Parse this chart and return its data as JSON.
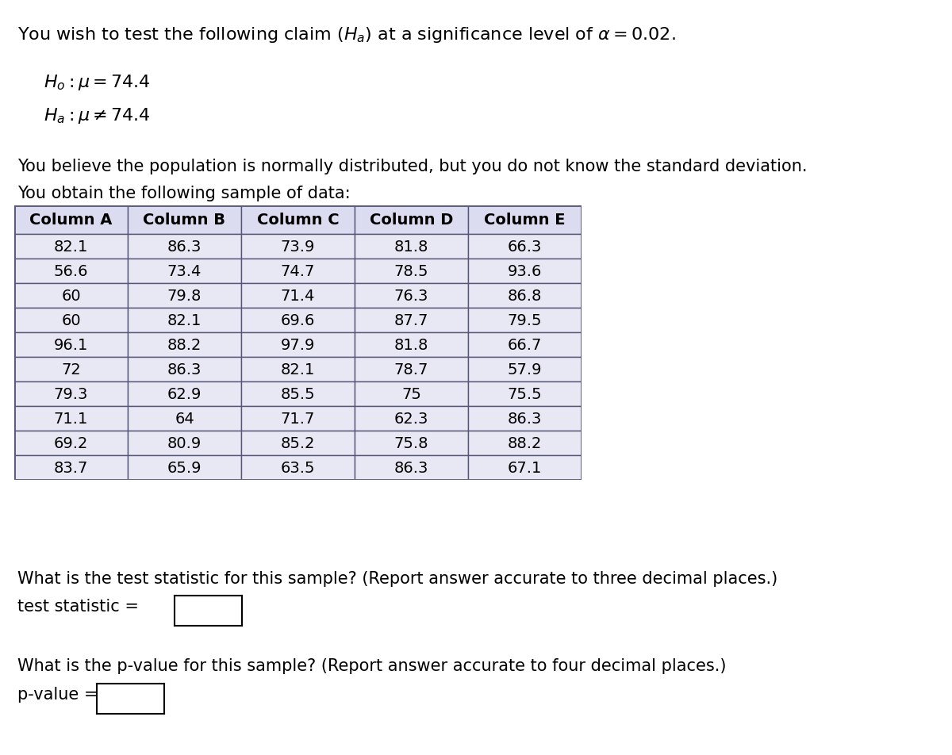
{
  "title_line": "You wish to test the following claim ($H_a$) at a significance level of $\\alpha = 0.02$.",
  "h0_text": "$H_o:\\mu = 74.4$",
  "ha_text": "$H_a:\\mu \\neq 74.4$",
  "body_text1": "You believe the population is normally distributed, but you do not know the standard deviation.",
  "body_text2": "You obtain the following sample of data:",
  "columns": [
    "Column A",
    "Column B",
    "Column C",
    "Column D",
    "Column E"
  ],
  "table_data": [
    [
      82.1,
      86.3,
      73.9,
      81.8,
      66.3
    ],
    [
      56.6,
      73.4,
      74.7,
      78.5,
      93.6
    ],
    [
      60,
      79.8,
      71.4,
      76.3,
      86.8
    ],
    [
      60,
      82.1,
      69.6,
      87.7,
      79.5
    ],
    [
      96.1,
      88.2,
      97.9,
      81.8,
      66.7
    ],
    [
      72,
      86.3,
      82.1,
      78.7,
      57.9
    ],
    [
      79.3,
      62.9,
      85.5,
      75,
      75.5
    ],
    [
      71.1,
      64,
      71.7,
      62.3,
      86.3
    ],
    [
      69.2,
      80.9,
      85.2,
      75.8,
      88.2
    ],
    [
      83.7,
      65.9,
      63.5,
      86.3,
      67.1
    ]
  ],
  "question1": "What is the test statistic for this sample? (Report answer accurate to three decimal places.)",
  "label1": "test statistic =",
  "question2": "What is the p-value for this sample? (Report answer accurate to four decimal places.)",
  "label2": "p-value =",
  "header_bg": "#dcdcf0",
  "row_bg": "#e8e8f5",
  "table_border": "#555577",
  "font_size_title": 16,
  "font_size_hyp": 16,
  "font_size_body": 15,
  "font_size_table_header": 14,
  "font_size_table_data": 14,
  "bg_color": "#ffffff"
}
